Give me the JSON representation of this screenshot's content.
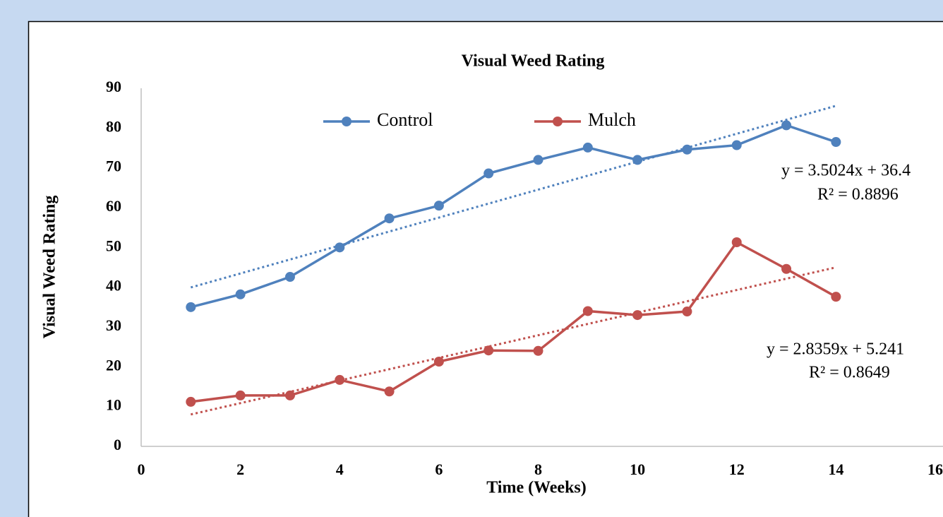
{
  "chart_data": {
    "type": "line",
    "title": "Visual Weed Rating",
    "x_label": "Time (Weeks)",
    "y_label": "Visual Weed Rating",
    "x": [
      1,
      2,
      3,
      4,
      5,
      6,
      7,
      8,
      9,
      10,
      11,
      12,
      13,
      14
    ],
    "series": [
      {
        "name": "Control",
        "color": "#4f81bd",
        "values": [
          35,
          38.2,
          42.6,
          50,
          57.3,
          60.5,
          68.6,
          72,
          75.1,
          72,
          74.6,
          75.7,
          80.7,
          76.5
        ]
      },
      {
        "name": "Mulch",
        "color": "#c0504d",
        "values": [
          11.2,
          12.8,
          12.8,
          16.7,
          13.8,
          21.3,
          24.1,
          24,
          34,
          33,
          33.9,
          51.3,
          44.6,
          37.6
        ]
      }
    ],
    "trendline": "linear",
    "annotations": [
      "y = 3.5024x + 36.4",
      "R² = 0.8896",
      "y = 2.8359x + 5.241",
      "R² = 0.8649"
    ],
    "xlim": [
      0,
      16
    ],
    "xticks": [
      0,
      2,
      4,
      6,
      8,
      10,
      12,
      14,
      16
    ],
    "ylim": [
      0,
      90
    ],
    "yticks": [
      0,
      10,
      20,
      30,
      40,
      50,
      60,
      70,
      80,
      90
    ],
    "grid": false,
    "legend": "top"
  }
}
